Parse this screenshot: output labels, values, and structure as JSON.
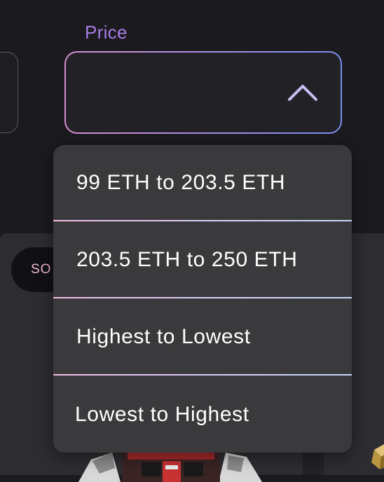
{
  "filters": {
    "price": {
      "label": "Price",
      "value": "",
      "expanded": true,
      "toggle_icon": "chevron-up-icon"
    },
    "sort_button": {
      "label": "SO"
    }
  },
  "price_dropdown": {
    "options": [
      {
        "label": "99 ETH to 203.5 ETH"
      },
      {
        "label": "203.5 ETH to 250 ETH"
      },
      {
        "label": "Highest to Lowest"
      },
      {
        "label": "Lowest to Highest"
      }
    ]
  },
  "colors": {
    "label_accent": "#a57ce6",
    "border_gradient_start": "#d98fd0",
    "border_gradient_end": "#7a8ff0",
    "dropdown_bg": "#3a3a3c",
    "page_bg": "#1b1a1e"
  }
}
